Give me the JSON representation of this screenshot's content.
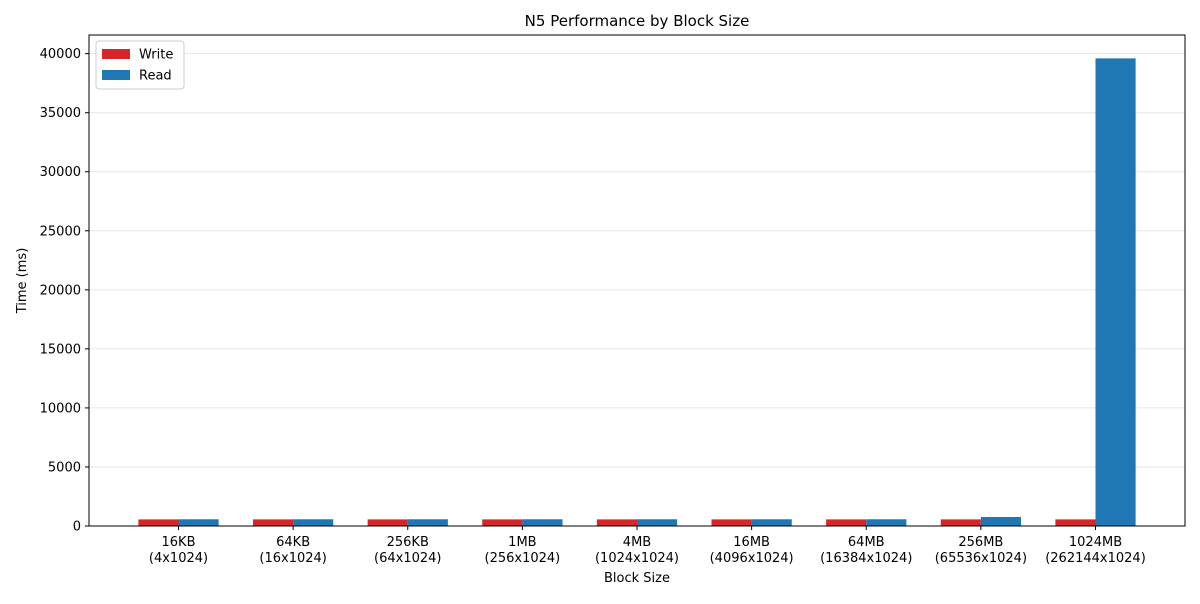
{
  "chart_data": {
    "type": "bar",
    "title": "N5 Performance by Block Size",
    "xlabel": "Block Size",
    "ylabel": "Time (ms)",
    "categories": [
      [
        "16KB",
        "(4x1024)"
      ],
      [
        "64KB",
        "(16x1024)"
      ],
      [
        "256KB",
        "(64x1024)"
      ],
      [
        "1MB",
        "(256x1024)"
      ],
      [
        "4MB",
        "(1024x1024)"
      ],
      [
        "16MB",
        "(4096x1024)"
      ],
      [
        "64MB",
        "(16384x1024)"
      ],
      [
        "256MB",
        "(65536x1024)"
      ],
      [
        "1024MB",
        "(262144x1024)"
      ]
    ],
    "series": [
      {
        "name": "Write",
        "color": "#d62728",
        "values": [
          560,
          560,
          560,
          560,
          560,
          560,
          560,
          560,
          560
        ]
      },
      {
        "name": "Read",
        "color": "#1f77b4",
        "values": [
          570,
          570,
          570,
          570,
          570,
          570,
          570,
          760,
          39600
        ]
      }
    ],
    "ylim": [
      0,
      41580
    ],
    "yticks": [
      0,
      5000,
      10000,
      15000,
      20000,
      25000,
      30000,
      35000,
      40000
    ],
    "grid": "y",
    "legend": "top-left"
  }
}
